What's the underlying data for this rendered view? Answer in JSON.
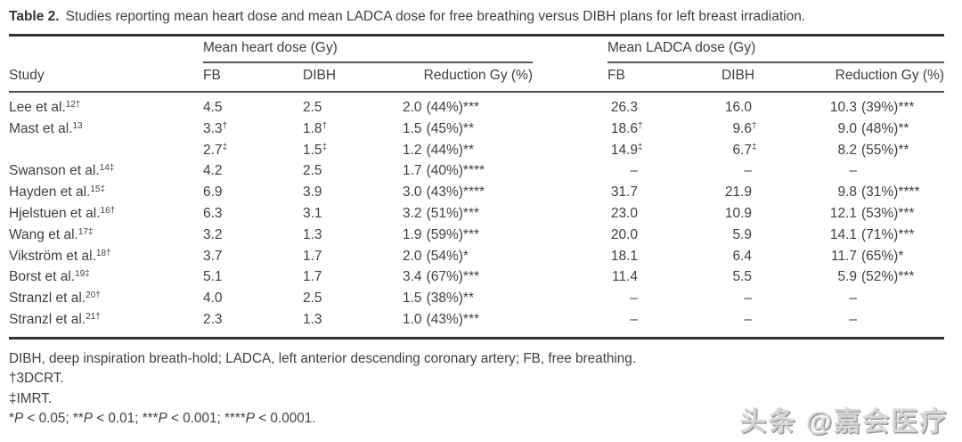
{
  "caption": {
    "label": "Table 2.",
    "text": "Studies reporting mean heart dose and mean LADCA dose for free breathing versus DIBH plans for left breast irradiation."
  },
  "header": {
    "study_label": "Study",
    "heart_group": "Mean heart dose (Gy)",
    "ladca_group": "Mean LADCA dose (Gy)",
    "fb": "FB",
    "dibh": "DIBH",
    "reduction": "Reduction Gy (%)"
  },
  "rows": [
    {
      "study": "Lee et al.",
      "ref": "12†",
      "hfb": "4.5",
      "hfb_n": "",
      "hdibh": "2.5",
      "hdibh_n": "",
      "hred": "2.0",
      "hred_sig": "(44%)***",
      "lfb": "26.3",
      "lfb_n": "",
      "ldibh": "16.0",
      "ldibh_n": "",
      "lred": "10.3",
      "lred_sig": "(39%)***"
    },
    {
      "study": "Mast et al.",
      "ref": "13",
      "hfb": "3.3",
      "hfb_n": "†",
      "hdibh": "1.8",
      "hdibh_n": "†",
      "hred": "1.5",
      "hred_sig": "(45%)**",
      "lfb": "18.6",
      "lfb_n": "†",
      "ldibh": "9.6",
      "ldibh_n": "†",
      "lred": "9.0",
      "lred_sig": "(48%)**"
    },
    {
      "study": "",
      "ref": "",
      "hfb": "2.7",
      "hfb_n": "‡",
      "hdibh": "1.5",
      "hdibh_n": "‡",
      "hred": "1.2",
      "hred_sig": "(44%)**",
      "lfb": "14.9",
      "lfb_n": "‡",
      "ldibh": "6.7",
      "ldibh_n": "‡",
      "lred": "8.2",
      "lred_sig": "(55%)**"
    },
    {
      "study": "Swanson et al.",
      "ref": "14‡",
      "hfb": "4.2",
      "hfb_n": "",
      "hdibh": "2.5",
      "hdibh_n": "",
      "hred": "1.7",
      "hred_sig": "(40%)****",
      "lfb": "–",
      "lfb_n": "",
      "ldibh": "–",
      "ldibh_n": "",
      "lred": "–",
      "lred_sig": ""
    },
    {
      "study": "Hayden et al.",
      "ref": "15‡",
      "hfb": "6.9",
      "hfb_n": "",
      "hdibh": "3.9",
      "hdibh_n": "",
      "hred": "3.0",
      "hred_sig": "(43%)****",
      "lfb": "31.7",
      "lfb_n": "",
      "ldibh": "21.9",
      "ldibh_n": "",
      "lred": "9.8",
      "lred_sig": "(31%)****"
    },
    {
      "study": "Hjelstuen et al.",
      "ref": "16†",
      "hfb": "6.3",
      "hfb_n": "",
      "hdibh": "3.1",
      "hdibh_n": "",
      "hred": "3.2",
      "hred_sig": "(51%)***",
      "lfb": "23.0",
      "lfb_n": "",
      "ldibh": "10.9",
      "ldibh_n": "",
      "lred": "12.1",
      "lred_sig": "(53%)***"
    },
    {
      "study": "Wang et al.",
      "ref": "17‡",
      "hfb": "3.2",
      "hfb_n": "",
      "hdibh": "1.3",
      "hdibh_n": "",
      "hred": "1.9",
      "hred_sig": "(59%)***",
      "lfb": "20.0",
      "lfb_n": "",
      "ldibh": "5.9",
      "ldibh_n": "",
      "lred": "14.1",
      "lred_sig": "(71%)***"
    },
    {
      "study": "Vikström et al.",
      "ref": "18†",
      "hfb": "3.7",
      "hfb_n": "",
      "hdibh": "1.7",
      "hdibh_n": "",
      "hred": "2.0",
      "hred_sig": "(54%)*",
      "lfb": "18.1",
      "lfb_n": "",
      "ldibh": "6.4",
      "ldibh_n": "",
      "lred": "11.7",
      "lred_sig": "(65%)*"
    },
    {
      "study": "Borst et al.",
      "ref": "19‡",
      "hfb": "5.1",
      "hfb_n": "",
      "hdibh": "1.7",
      "hdibh_n": "",
      "hred": "3.4",
      "hred_sig": "(67%)***",
      "lfb": "11.4",
      "lfb_n": "",
      "ldibh": "5.5",
      "ldibh_n": "",
      "lred": "5.9",
      "lred_sig": "(52%)***"
    },
    {
      "study": "Stranzl et al.",
      "ref": "20†",
      "hfb": "4.0",
      "hfb_n": "",
      "hdibh": "2.5",
      "hdibh_n": "",
      "hred": "1.5",
      "hred_sig": "(38%)**",
      "lfb": "–",
      "lfb_n": "",
      "ldibh": "–",
      "ldibh_n": "",
      "lred": "–",
      "lred_sig": ""
    },
    {
      "study": "Stranzl et al.",
      "ref": "21†",
      "hfb": "2.3",
      "hfb_n": "",
      "hdibh": "1.3",
      "hdibh_n": "",
      "hred": "1.0",
      "hred_sig": "(43%)***",
      "lfb": "–",
      "lfb_n": "",
      "ldibh": "–",
      "ldibh_n": "",
      "lred": "–",
      "lred_sig": ""
    }
  ],
  "footnotes": {
    "abbrev": "DIBH, deep inspiration breath-hold; LADCA, left anterior descending coronary artery; FB, free breathing.",
    "dagger": "†3DCRT.",
    "ddagger": "‡IMRT.",
    "sig_parts": [
      {
        "stars": "*",
        "p": "P",
        "rest": " < 0.05; "
      },
      {
        "stars": "**",
        "p": "P",
        "rest": " < 0.01; "
      },
      {
        "stars": "***",
        "p": "P",
        "rest": " < 0.001; "
      },
      {
        "stars": "****",
        "p": "P",
        "rest": " < 0.0001."
      }
    ]
  },
  "watermark": "头条 @嘉会医疗",
  "colors": {
    "text": "#3f3f3f",
    "rule_heavy": "#343434",
    "rule_mid": "#4d4d4d",
    "watermark": "#d6d6d6"
  }
}
